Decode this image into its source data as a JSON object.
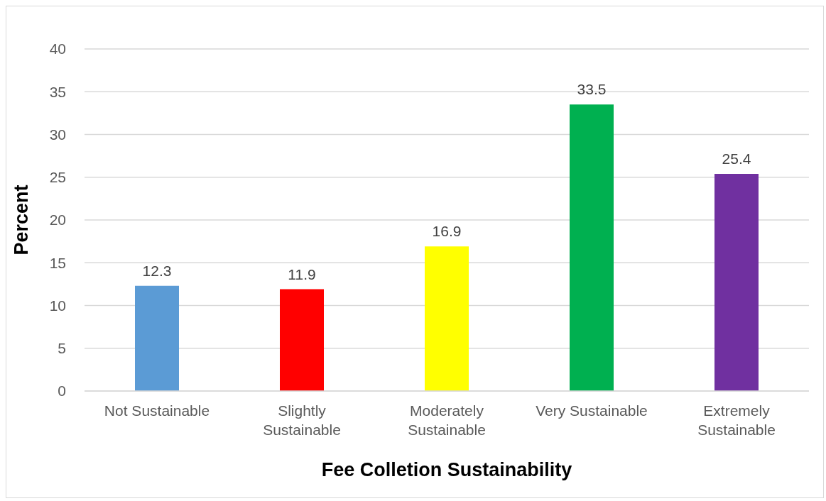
{
  "chart_data": {
    "type": "bar",
    "xlabel": "Fee Colletion Sustainability",
    "ylabel": "Percent",
    "categories": [
      "Not Sustainable",
      "Slightly Sustainable",
      "Moderately Sustainable",
      "Very Sustainable",
      "Extremely Sustainable"
    ],
    "values": [
      12.3,
      11.9,
      16.9,
      33.5,
      25.4
    ],
    "colors": [
      "#5b9bd5",
      "#ff0000",
      "#ffff00",
      "#00b050",
      "#7030a0"
    ],
    "ylim": [
      0,
      40
    ],
    "yticks": [
      0,
      5,
      10,
      15,
      20,
      25,
      30,
      35,
      40
    ],
    "grid": "y",
    "data_labels": true
  }
}
